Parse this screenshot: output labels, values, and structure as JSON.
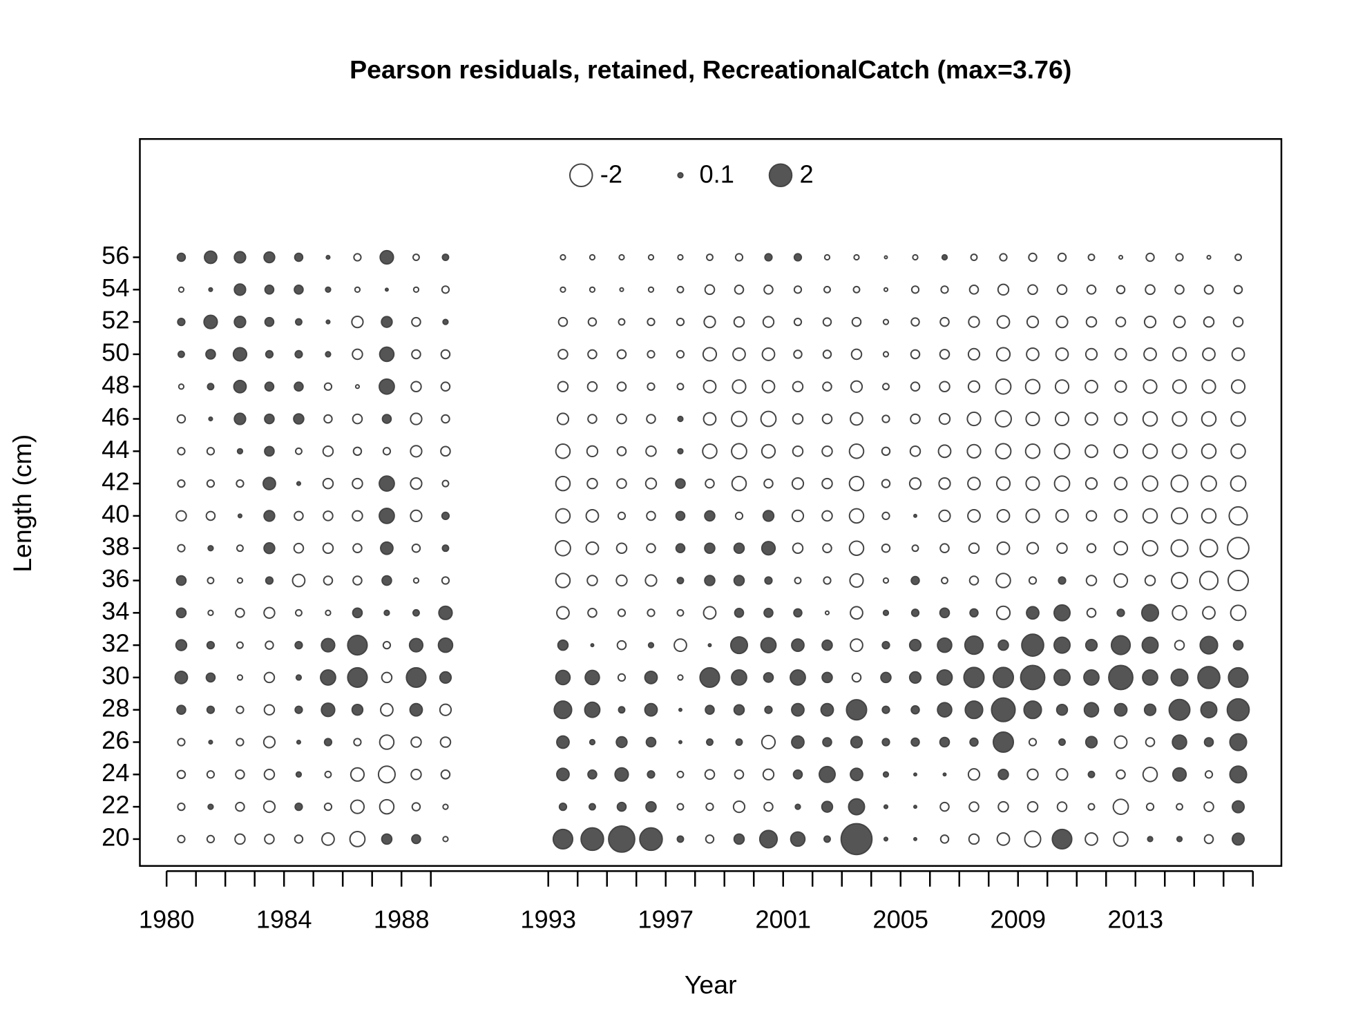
{
  "chart_data": {
    "type": "bubble",
    "title": "Pearson residuals, retained, RecreationalCatch (max=3.76)",
    "xlabel": "Year",
    "ylabel": "Length (cm)",
    "xlim": [
      1979.09,
      2017.97
    ],
    "ylim": [
      18.34,
      63.32
    ],
    "xticks": [
      1980,
      1984,
      1988,
      1993,
      1997,
      2001,
      2005,
      2009,
      2013
    ],
    "xminorticks": [
      1981,
      1982,
      1983,
      1985,
      1986,
      1987,
      1989,
      1994,
      1995,
      1996,
      1998,
      1999,
      2000,
      2002,
      2003,
      2004,
      2006,
      2007,
      2008,
      2010,
      2011,
      2012,
      2014,
      2015,
      2016,
      2017
    ],
    "yticks": [
      20,
      22,
      24,
      26,
      28,
      30,
      32,
      34,
      36,
      38,
      40,
      42,
      44,
      46,
      48,
      50,
      52,
      54,
      56
    ],
    "legend": [
      -2,
      0.1,
      2
    ],
    "colors": {
      "positive": "#555555",
      "negative": "#ffffff",
      "stroke": "#444444"
    },
    "x": [
      1980.5,
      1981.5,
      1982.5,
      1983.5,
      1984.5,
      1985.5,
      1986.5,
      1987.5,
      1988.5,
      1989.5,
      1993.5,
      1994.5,
      1995.5,
      1996.5,
      1997.5,
      1998.5,
      1999.5,
      2000.5,
      2001.5,
      2002.5,
      2003.5,
      2004.5,
      2005.5,
      2006.5,
      2007.5,
      2008.5,
      2009.5,
      2010.5,
      2011.5,
      2012.5,
      2013.5,
      2014.5,
      2015.5,
      2016.5
    ],
    "y": [
      20,
      22,
      24,
      26,
      28,
      30,
      32,
      34,
      36,
      38,
      40,
      42,
      44,
      46,
      48,
      50,
      52,
      54,
      56
    ],
    "values": [
      [
        -0.2,
        -0.2,
        -0.25,
        -0.2,
        0.3,
        0.6,
        0.45,
        0.35,
        0.35,
        -0.2,
        -0.4,
        -0.2,
        -0.2,
        -0.25,
        -0.1,
        0.15,
        0.2,
        -0.1,
        0.25
      ],
      [
        -0.2,
        0.1,
        -0.2,
        0.05,
        0.2,
        0.3,
        0.2,
        -0.1,
        -0.15,
        0.1,
        -0.3,
        -0.2,
        -0.2,
        0.05,
        0.15,
        0.35,
        0.7,
        0.05,
        0.6
      ],
      [
        -0.4,
        -0.3,
        -0.3,
        -0.2,
        -0.2,
        -0.1,
        -0.15,
        -0.3,
        -0.1,
        -0.15,
        0.05,
        -0.2,
        0.1,
        0.5,
        0.6,
        0.7,
        0.5,
        0.5,
        0.5
      ],
      [
        -0.35,
        -0.5,
        -0.4,
        -0.5,
        -0.4,
        -0.4,
        -0.25,
        -0.45,
        0.2,
        0.45,
        0.45,
        0.6,
        0.35,
        0.35,
        0.3,
        0.2,
        0.3,
        0.3,
        0.45
      ],
      [
        -0.25,
        0.2,
        0.1,
        0.05,
        0.2,
        0.1,
        0.2,
        -0.15,
        -0.6,
        -0.35,
        -0.3,
        0.05,
        -0.15,
        0.4,
        0.3,
        0.2,
        0.15,
        0.3,
        0.25
      ],
      [
        -0.6,
        -0.2,
        -0.15,
        0.2,
        0.7,
        0.9,
        0.7,
        -0.1,
        -0.3,
        -0.4,
        -0.35,
        -0.4,
        -0.4,
        -0.25,
        -0.2,
        0.1,
        0.05,
        0.1,
        0.05
      ],
      [
        -0.9,
        -0.7,
        -0.7,
        -0.2,
        0.45,
        1.5,
        1.5,
        0.35,
        -0.3,
        -0.3,
        -0.4,
        -0.4,
        -0.25,
        -0.35,
        -0.05,
        -0.4,
        -0.5,
        -0.1,
        -0.2
      ],
      [
        0.4,
        -0.8,
        -1.1,
        -0.8,
        -0.6,
        -0.4,
        -0.2,
        0.1,
        0.35,
        0.6,
        0.9,
        0.9,
        -0.2,
        0.3,
        0.9,
        0.8,
        0.45,
        0.03,
        0.7
      ],
      [
        0.3,
        -0.25,
        -0.4,
        -0.4,
        0.6,
        1.5,
        0.7,
        0.15,
        -0.1,
        -0.25,
        -0.5,
        -0.5,
        -0.5,
        -0.5,
        -0.4,
        -0.3,
        -0.3,
        -0.1,
        -0.15
      ],
      [
        -0.1,
        -0.1,
        -0.3,
        -0.4,
        -0.5,
        0.5,
        0.8,
        0.7,
        -0.2,
        0.15,
        0.2,
        -0.15,
        -0.35,
        -0.25,
        -0.3,
        -0.3,
        0.1,
        -0.2,
        0.15
      ],
      [
        1.5,
        0.2,
        0.6,
        0.6,
        1.2,
        0.8,
        0.4,
        -0.6,
        -0.8,
        -0.9,
        -0.8,
        -0.8,
        -0.8,
        -0.5,
        -0.4,
        -0.35,
        -0.3,
        -0.1,
        -0.1
      ],
      [
        2.0,
        0.15,
        0.3,
        0.1,
        0.9,
        0.8,
        0.03,
        -0.3,
        -0.4,
        -0.6,
        -0.6,
        -0.4,
        -0.45,
        -0.3,
        -0.35,
        -0.3,
        -0.25,
        -0.1,
        -0.1
      ],
      [
        2.7,
        0.3,
        0.7,
        0.45,
        0.15,
        -0.2,
        -0.3,
        -0.2,
        -0.45,
        -0.4,
        -0.2,
        -0.35,
        -0.3,
        -0.35,
        -0.3,
        -0.3,
        -0.15,
        -0.05,
        -0.1
      ],
      [
        2.0,
        0.4,
        0.2,
        0.35,
        0.6,
        0.6,
        0.1,
        -0.2,
        -0.5,
        -0.3,
        -0.3,
        -0.45,
        -0.4,
        -0.3,
        -0.2,
        -0.2,
        -0.2,
        -0.1,
        -0.1
      ],
      [
        0.15,
        -0.15,
        -0.15,
        0.03,
        0.03,
        -0.1,
        -0.6,
        -0.15,
        0.15,
        0.3,
        0.3,
        0.35,
        0.1,
        0.1,
        -0.15,
        -0.2,
        -0.2,
        -0.15,
        -0.1
      ],
      [
        -0.25,
        -0.2,
        -0.35,
        0.15,
        0.3,
        1.5,
        0.03,
        -0.6,
        0.4,
        0.4,
        0.4,
        -0.3,
        -0.8,
        -0.6,
        -0.6,
        -0.7,
        -0.5,
        -0.35,
        -0.15
      ],
      [
        0.4,
        -0.5,
        -0.3,
        0.15,
        0.4,
        0.9,
        1.1,
        0.3,
        0.4,
        0.4,
        -0.2,
        -0.8,
        -0.9,
        -0.9,
        -0.7,
        -0.6,
        -0.4,
        -0.3,
        -0.2
      ],
      [
        1.2,
        -0.3,
        -0.45,
        -0.7,
        0.2,
        0.35,
        0.9,
        0.3,
        0.2,
        0.7,
        0.45,
        -0.3,
        -0.7,
        -0.9,
        -0.6,
        -0.6,
        -0.45,
        -0.3,
        0.2
      ],
      [
        0.8,
        0.1,
        0.3,
        0.6,
        0.6,
        0.9,
        0.6,
        0.25,
        -0.15,
        -0.4,
        -0.5,
        -0.5,
        -0.4,
        -0.4,
        -0.4,
        -0.25,
        -0.2,
        -0.2,
        0.2
      ],
      [
        0.15,
        0.45,
        1.0,
        0.3,
        0.6,
        0.4,
        0.4,
        -0.05,
        -0.2,
        -0.3,
        -0.4,
        -0.4,
        -0.4,
        -0.35,
        -0.3,
        -0.25,
        -0.25,
        -0.15,
        -0.1
      ],
      [
        3.76,
        1.0,
        0.6,
        0.5,
        1.6,
        -0.3,
        -0.6,
        -0.6,
        -0.7,
        -0.8,
        -0.8,
        -0.8,
        -0.8,
        -0.6,
        -0.5,
        -0.4,
        -0.3,
        -0.15,
        -0.1
      ],
      [
        0.05,
        0.05,
        0.1,
        0.2,
        0.2,
        0.4,
        0.2,
        0.1,
        -0.1,
        -0.25,
        -0.2,
        -0.25,
        -0.25,
        -0.2,
        -0.15,
        -0.1,
        -0.1,
        -0.05,
        -0.03
      ],
      [
        0.03,
        0.03,
        0.03,
        0.25,
        0.25,
        0.5,
        0.5,
        0.2,
        0.25,
        -0.15,
        0.03,
        -0.5,
        -0.4,
        -0.35,
        -0.3,
        -0.3,
        -0.25,
        -0.2,
        -0.1
      ],
      [
        -0.25,
        -0.3,
        0.03,
        0.35,
        0.8,
        0.9,
        0.8,
        0.35,
        -0.15,
        -0.3,
        -0.5,
        -0.5,
        -0.6,
        -0.45,
        -0.4,
        -0.35,
        -0.3,
        -0.2,
        0.1
      ],
      [
        -0.4,
        -0.35,
        -0.5,
        0.25,
        1.2,
        1.6,
        1.3,
        0.25,
        -0.3,
        -0.4,
        -0.6,
        -0.6,
        -0.7,
        -0.7,
        -0.5,
        -0.5,
        -0.45,
        -0.3,
        -0.15
      ],
      [
        -0.6,
        -0.4,
        0.4,
        1.6,
        2.2,
        1.6,
        0.4,
        -0.7,
        -0.8,
        -0.6,
        -0.6,
        -0.7,
        -0.9,
        -1.0,
        -0.9,
        -0.7,
        -0.6,
        -0.45,
        -0.2
      ],
      [
        -1.0,
        -0.4,
        -0.45,
        -0.2,
        1.2,
        2.3,
        1.9,
        0.6,
        -0.2,
        -0.5,
        -0.7,
        -0.7,
        -0.8,
        -0.7,
        -0.8,
        -0.6,
        -0.5,
        -0.35,
        -0.25
      ],
      [
        1.5,
        -0.35,
        -0.5,
        0.15,
        0.45,
        1.0,
        1.0,
        1.0,
        0.2,
        -0.4,
        -0.6,
        -0.9,
        -0.9,
        -0.7,
        -0.7,
        -0.6,
        -0.5,
        -0.35,
        -0.25
      ],
      [
        -0.6,
        -0.15,
        0.15,
        0.5,
        0.8,
        0.9,
        0.5,
        -0.3,
        -0.4,
        -0.3,
        -0.4,
        -0.5,
        -0.6,
        -0.6,
        -0.6,
        -0.5,
        -0.4,
        -0.3,
        -0.15
      ],
      [
        -0.8,
        -0.9,
        -0.3,
        -0.6,
        0.6,
        2.3,
        1.4,
        0.2,
        -0.7,
        -0.7,
        -0.6,
        -0.6,
        -0.7,
        -0.6,
        -0.5,
        -0.5,
        -0.35,
        -0.25,
        -0.05
      ],
      [
        0.1,
        -0.2,
        -0.8,
        -0.3,
        0.5,
        0.9,
        1.0,
        1.1,
        -0.4,
        -0.9,
        -0.8,
        -0.9,
        -0.8,
        -0.8,
        -0.7,
        -0.6,
        -0.5,
        -0.35,
        -0.25
      ],
      [
        0.1,
        -0.15,
        0.7,
        0.8,
        1.7,
        1.1,
        -0.35,
        -0.8,
        -1.0,
        -1.1,
        -1.0,
        -1.1,
        -0.8,
        -0.8,
        -0.7,
        -0.7,
        -0.5,
        -0.3,
        -0.2
      ],
      [
        -0.3,
        -0.35,
        -0.2,
        0.3,
        1.0,
        1.9,
        1.2,
        -0.6,
        -1.3,
        -1.2,
        -0.8,
        -0.9,
        -0.8,
        -0.8,
        -0.7,
        -0.6,
        -0.4,
        -0.3,
        -0.05
      ],
      [
        0.55,
        0.55,
        1.1,
        1.1,
        1.9,
        1.5,
        0.35,
        -0.9,
        -1.6,
        -1.8,
        -1.3,
        -0.9,
        -0.8,
        -0.8,
        -0.7,
        -0.6,
        -0.35,
        -0.25,
        -0.15
      ]
    ]
  }
}
